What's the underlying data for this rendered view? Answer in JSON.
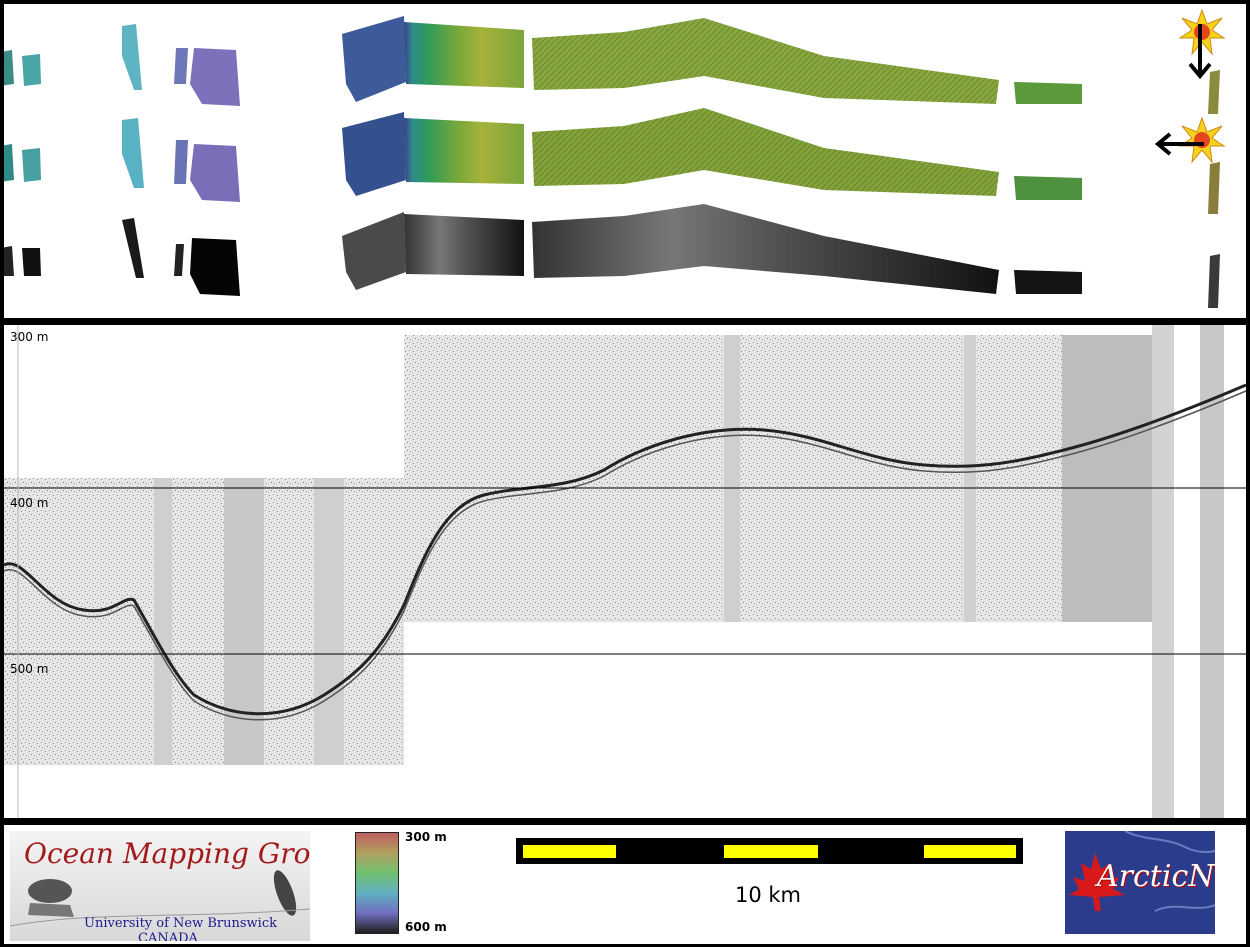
{
  "profile": {
    "depth_labels": [
      "300 m",
      "400 m",
      "500 m"
    ]
  },
  "footer": {
    "logo": {
      "title": "Ocean Mapping Group",
      "subtitle_line1": "University of New Brunswick",
      "subtitle_line2": "CANADA"
    },
    "colorbar": {
      "top_label": "300 m",
      "bottom_label": "600 m"
    },
    "scalebar": {
      "label": "10 km"
    },
    "partner_logo": {
      "text": "ArcticNet"
    }
  },
  "colors": {
    "frame": "#000000",
    "logo_red": "#a41a1a",
    "logo_blue": "#1a1a8c",
    "scale_yellow": "#ffff00",
    "arctic_bg": "#2b3c8c"
  }
}
